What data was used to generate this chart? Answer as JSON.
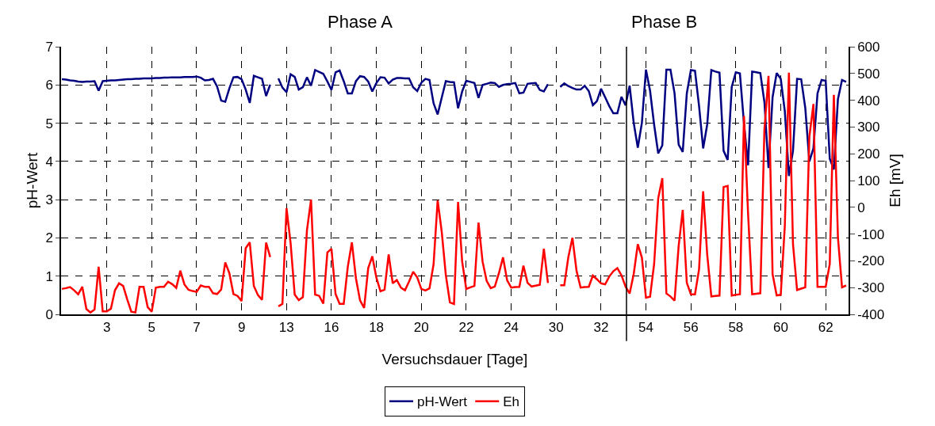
{
  "chart_data": {
    "type": "line",
    "annotations": [
      "Phase A",
      "Phase B"
    ],
    "xlabel": "Versuchsdauer [Tage]",
    "ylabel": "pH-Wert",
    "y2label": "Eh [mV]",
    "categories": [
      null,
      null,
      null,
      null,
      null,
      null,
      null,
      null,
      null,
      null,
      null,
      "3",
      null,
      null,
      null,
      null,
      null,
      null,
      null,
      null,
      null,
      null,
      "5",
      null,
      null,
      null,
      null,
      null,
      null,
      null,
      null,
      null,
      null,
      "7",
      null,
      null,
      null,
      null,
      null,
      null,
      null,
      null,
      null,
      null,
      "9",
      null,
      null,
      null,
      null,
      null,
      null,
      null,
      null,
      null,
      null,
      "13",
      null,
      null,
      null,
      null,
      null,
      null,
      null,
      null,
      null,
      null,
      "16",
      null,
      null,
      null,
      null,
      null,
      null,
      null,
      null,
      null,
      null,
      "18",
      null,
      null,
      null,
      null,
      null,
      null,
      null,
      null,
      null,
      null,
      "20",
      null,
      null,
      null,
      null,
      null,
      null,
      null,
      null,
      null,
      null,
      "22",
      null,
      null,
      null,
      null,
      null,
      null,
      null,
      null,
      null,
      null,
      "24",
      null,
      null,
      null,
      null,
      null,
      null,
      null,
      null,
      null,
      null,
      "30",
      null,
      null,
      null,
      null,
      null,
      null,
      null,
      null,
      null,
      null,
      "32",
      null,
      null,
      null,
      null,
      null,
      null,
      null,
      null,
      null,
      null,
      "54",
      null,
      null,
      null,
      null,
      null,
      null,
      null,
      null,
      null,
      null,
      "56",
      null,
      null,
      null,
      null,
      null,
      null,
      null,
      null,
      null,
      null,
      "58",
      null,
      null,
      null,
      null,
      null,
      null,
      null,
      null,
      null,
      null,
      "60",
      null,
      null,
      null,
      null,
      null,
      null,
      null,
      null,
      null,
      null,
      "62",
      null,
      null,
      null,
      null,
      null
    ],
    "ylim": [
      0,
      7
    ],
    "yticks": [
      0,
      1,
      2,
      3,
      4,
      5,
      6,
      7
    ],
    "y2lim": [
      -400,
      600
    ],
    "y2ticks": [
      -400,
      -300,
      -200,
      -100,
      0,
      100,
      200,
      300,
      400,
      500,
      600
    ],
    "grid": true,
    "legend": "bottom",
    "line_style": "solid",
    "series": [
      {
        "name": "pH-Wert",
        "color": "#000080",
        "values": [
          6.15,
          6.14,
          6.12,
          6.11,
          6.09,
          6.08,
          6.09,
          6.09,
          6.1,
          5.85,
          6.1,
          6.11,
          6.12,
          6.12,
          6.13,
          6.14,
          6.15,
          6.15,
          6.16,
          6.16,
          6.17,
          6.17,
          6.17,
          6.18,
          6.18,
          6.19,
          6.19,
          6.2,
          6.2,
          6.2,
          6.21,
          6.21,
          6.21,
          6.22,
          6.19,
          6.12,
          6.13,
          6.16,
          5.96,
          5.59,
          5.56,
          5.91,
          6.2,
          6.21,
          6.15,
          5.88,
          5.53,
          6.24,
          6.2,
          6.16,
          5.71,
          6.01,
          null,
          6.17,
          5.93,
          5.81,
          6.28,
          6.21,
          5.88,
          5.94,
          6.2,
          5.98,
          6.39,
          6.34,
          6.29,
          6.09,
          5.87,
          6.33,
          6.38,
          6.1,
          5.78,
          5.78,
          6.1,
          6.23,
          6.21,
          6.09,
          5.83,
          6.05,
          6.2,
          6.19,
          6.04,
          6.14,
          6.18,
          6.18,
          6.17,
          6.17,
          5.94,
          5.84,
          6.06,
          6.16,
          6.13,
          5.52,
          5.23,
          5.67,
          6.1,
          6.08,
          6.07,
          5.39,
          5.83,
          6.11,
          6.08,
          6.05,
          5.66,
          6.0,
          6.03,
          6.06,
          6.05,
          5.95,
          6.0,
          6.02,
          6.03,
          6.05,
          5.78,
          5.8,
          6.03,
          6.04,
          6.05,
          5.87,
          5.83,
          6.02,
          null,
          null,
          5.95,
          6.04,
          5.97,
          5.92,
          5.88,
          5.88,
          5.98,
          5.84,
          5.47,
          5.58,
          5.9,
          5.68,
          5.45,
          5.26,
          5.26,
          5.69,
          5.47,
          5.98,
          5.01,
          4.36,
          5.01,
          6.4,
          5.85,
          4.96,
          4.21,
          4.42,
          6.4,
          6.4,
          5.78,
          4.44,
          4.25,
          5.78,
          6.39,
          6.37,
          5.45,
          4.34,
          4.97,
          6.39,
          6.35,
          6.32,
          4.28,
          4.04,
          5.95,
          6.33,
          6.3,
          4.99,
          3.9,
          6.35,
          6.33,
          6.31,
          5.55,
          3.83,
          5.68,
          6.31,
          6.16,
          5.31,
          3.62,
          4.28,
          6.16,
          6.15,
          5.4,
          4.0,
          4.34,
          5.78,
          6.13,
          6.11,
          4.07,
          3.79,
          5.63,
          6.13,
          6.08
        ]
      },
      {
        "name": "Eh",
        "color": "#ff0000",
        "axis": "y2",
        "values": [
          -305,
          -302,
          -298,
          -310,
          -325,
          -297,
          -380,
          -393,
          -382,
          -222,
          -389,
          -389,
          -379,
          -310,
          -284,
          -294,
          -344,
          -390,
          -393,
          -297,
          -297,
          -373,
          -390,
          -300,
          -297,
          -297,
          -278,
          -287,
          -301,
          -237,
          -288,
          -308,
          -313,
          -316,
          -292,
          -297,
          -297,
          -321,
          -324,
          -307,
          -206,
          -246,
          -324,
          -331,
          -350,
          -153,
          -131,
          -294,
          -328,
          -346,
          -132,
          -186,
          null,
          -370,
          -361,
          -3,
          -134,
          -326,
          -347,
          -336,
          -86,
          29,
          -326,
          -331,
          -360,
          -169,
          -155,
          -324,
          -361,
          -361,
          -222,
          -131,
          -266,
          -348,
          -376,
          -227,
          -183,
          -263,
          -314,
          -308,
          -176,
          -284,
          -272,
          -300,
          -310,
          -277,
          -241,
          -262,
          -305,
          -311,
          -303,
          -213,
          26,
          -92,
          -253,
          -355,
          -361,
          20,
          -203,
          -305,
          -299,
          -294,
          -57,
          -203,
          -275,
          -302,
          -296,
          -246,
          -187,
          -272,
          -300,
          -298,
          -297,
          -218,
          -282,
          -296,
          -293,
          -290,
          -155,
          -283,
          null,
          null,
          -291,
          -291,
          -186,
          -114,
          -237,
          -300,
          -298,
          -297,
          -255,
          -269,
          -284,
          -288,
          -259,
          -239,
          -227,
          -254,
          -296,
          -322,
          -249,
          -138,
          -188,
          -338,
          -334,
          -212,
          34,
          109,
          -322,
          -333,
          -349,
          -145,
          -10,
          -282,
          -325,
          -325,
          -232,
          60,
          -178,
          -333,
          -331,
          -330,
          76,
          80,
          -330,
          -327,
          -325,
          341,
          -24,
          -325,
          -323,
          -321,
          290,
          491,
          -250,
          -329,
          -327,
          -68,
          503,
          -138,
          -309,
          -304,
          -299,
          263,
          386,
          -297,
          -297,
          -297,
          -211,
          420,
          -113,
          -299,
          -292
        ]
      }
    ]
  }
}
